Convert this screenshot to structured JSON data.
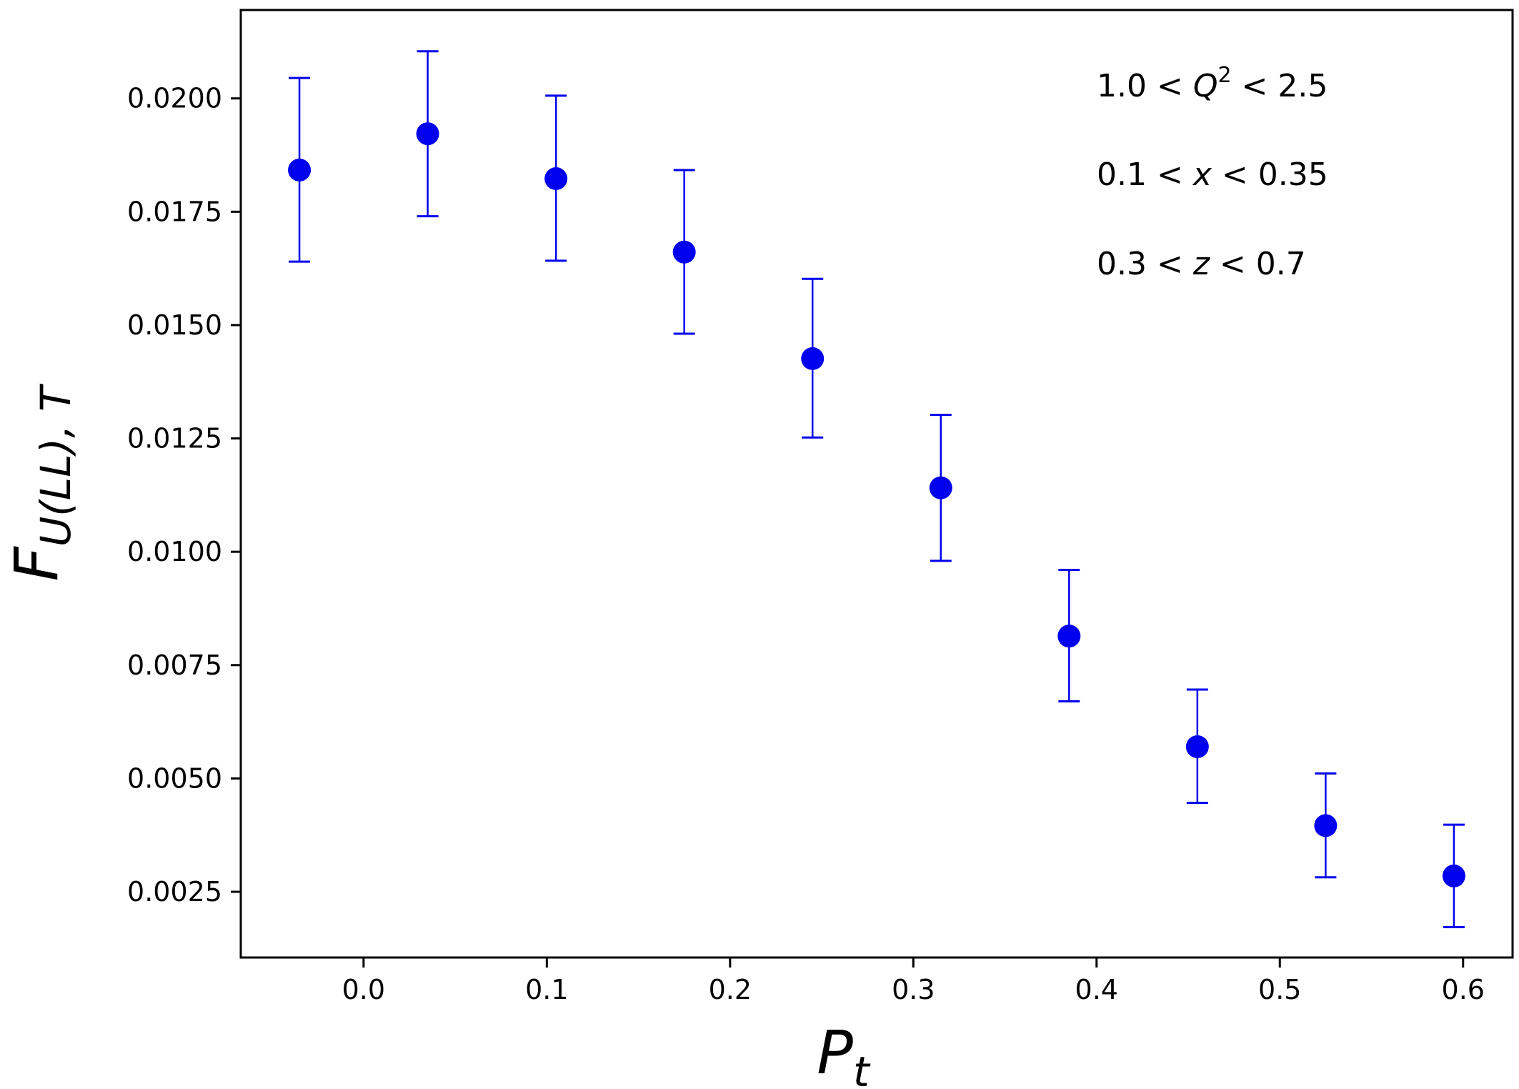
{
  "chart_data": {
    "type": "scatter",
    "title": "",
    "xlabel": {
      "main": "P",
      "sub": "t"
    },
    "ylabel": {
      "main": "F",
      "sub": "U(LL), T"
    },
    "xlim": [
      -0.067,
      0.627
    ],
    "ylim": [
      0.00105,
      0.02195
    ],
    "xticks": [
      0.0,
      0.1,
      0.2,
      0.3,
      0.4,
      0.5,
      0.6
    ],
    "xtick_labels": [
      "0.0",
      "0.1",
      "0.2",
      "0.3",
      "0.4",
      "0.5",
      "0.6"
    ],
    "yticks": [
      0.0025,
      0.005,
      0.0075,
      0.01,
      0.0125,
      0.015,
      0.0175,
      0.02
    ],
    "ytick_labels": [
      "0.0025",
      "0.0050",
      "0.0075",
      "0.0100",
      "0.0125",
      "0.0150",
      "0.0175",
      "0.0200"
    ],
    "grid": false,
    "series": [
      {
        "name": "F_U(LL),T",
        "color": "#0000ee",
        "x": [
          -0.035,
          0.035,
          0.105,
          0.175,
          0.245,
          0.315,
          0.385,
          0.455,
          0.525,
          0.595
        ],
        "y": [
          0.01842,
          0.01922,
          0.01823,
          0.01661,
          0.01426,
          0.01141,
          0.00814,
          0.0057,
          0.00396,
          0.00285
        ],
        "yerr_low": [
          0.0164,
          0.0174,
          0.01642,
          0.01481,
          0.01252,
          0.0098,
          0.0067,
          0.00446,
          0.00282,
          0.00172
        ],
        "yerr_high": [
          0.02045,
          0.02104,
          0.02006,
          0.01842,
          0.01602,
          0.01302,
          0.0096,
          0.00696,
          0.00511,
          0.00398
        ]
      }
    ],
    "annotations": [
      {
        "pre": "1.0 < ",
        "var": "Q",
        "sup": "2",
        "post": " < 2.5"
      },
      {
        "pre": "0.1 < ",
        "var": "x",
        "sup": "",
        "post": " < 0.35"
      },
      {
        "pre": "0.3 < ",
        "var": "z",
        "sup": "",
        "post": " < 0.7"
      }
    ]
  }
}
